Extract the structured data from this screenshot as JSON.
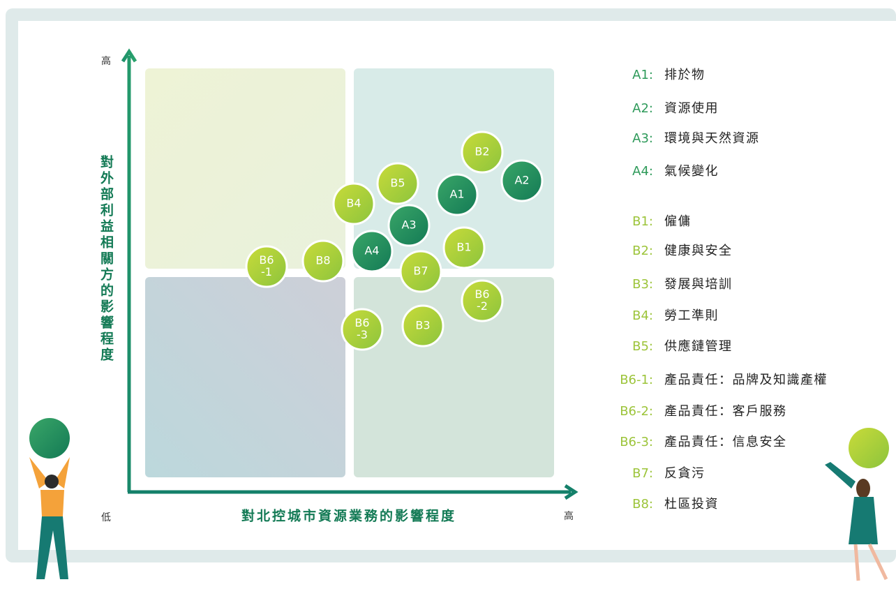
{
  "axes": {
    "y_label": "對外部利益相關方的影響程度",
    "x_label": "對北控城市資源業務的影響程度",
    "y_high": "高",
    "origin_low": "低",
    "x_high": "高"
  },
  "bubbles": [
    {
      "lines": [
        "B2"
      ]
    },
    {
      "lines": [
        "A2"
      ]
    },
    {
      "lines": [
        "B5"
      ]
    },
    {
      "lines": [
        "A1"
      ]
    },
    {
      "lines": [
        "B4"
      ]
    },
    {
      "lines": [
        "A3"
      ]
    },
    {
      "lines": [
        "B1"
      ]
    },
    {
      "lines": [
        "A4"
      ]
    },
    {
      "lines": [
        "B7"
      ]
    },
    {
      "lines": [
        "B6",
        "-1"
      ]
    },
    {
      "lines": [
        "B8"
      ]
    },
    {
      "lines": [
        "B6",
        "-2"
      ]
    },
    {
      "lines": [
        "B6",
        "-3"
      ]
    },
    {
      "lines": [
        "B3"
      ]
    }
  ],
  "legend": [
    {
      "code": "A1:",
      "text": "排於物"
    },
    {
      "code": "A2:",
      "text": "資源使用"
    },
    {
      "code": "A3:",
      "text": "環境與天然資源"
    },
    {
      "code": "A4:",
      "text": "氣候變化"
    },
    {
      "code": "B1:",
      "text": "僱傭"
    },
    {
      "code": "B2:",
      "text": "健康與安全"
    },
    {
      "code": "B3:",
      "text": "發展與培訓"
    },
    {
      "code": "B4:",
      "text": "勞工準則"
    },
    {
      "code": "B5:",
      "text": "供應鏈管理"
    },
    {
      "code": "B6-1:",
      "text": "產品責任：品牌及知識產權"
    },
    {
      "code": "B6-2:",
      "text": "產品責任：客戶服務"
    },
    {
      "code": "B6-3:",
      "text": "產品責任：信息安全"
    },
    {
      "code": "B7:",
      "text": "反貪污"
    },
    {
      "code": "B8:",
      "text": "杜區投資"
    }
  ]
}
